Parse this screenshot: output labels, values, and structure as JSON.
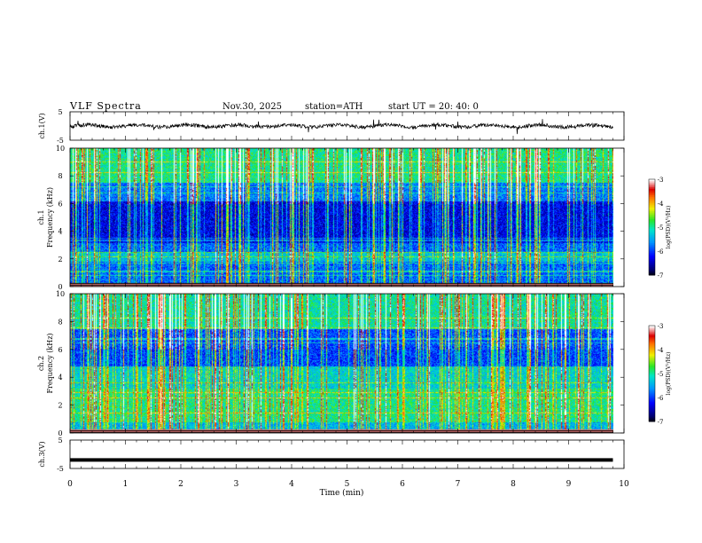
{
  "header": {
    "title": "VLF  Spectra",
    "date": "Nov.30, 2025",
    "station": "station=ATH",
    "start": "start  UT  =    20: 40: 0"
  },
  "chart_data": [
    {
      "type": "line",
      "name_label": "ch.1(V)",
      "ylim": [
        -5,
        5
      ],
      "yticks": [
        "5",
        "-5"
      ],
      "description_values": {
        "baseline": 0.0,
        "typical_range": [
          -1.0,
          1.0
        ]
      }
    },
    {
      "type": "heatmap",
      "ylabel": "ch.1\nFrequency  (kHz)",
      "ylim": [
        0,
        10
      ],
      "yticks": [
        "0",
        "2",
        "4",
        "6",
        "8",
        "10"
      ],
      "colorbar": {
        "label": "log(PSD)(V²/Hz)",
        "ticks": [
          "-3",
          "-4",
          "-5",
          "-6",
          "-7"
        ],
        "range": [
          -7,
          -3
        ]
      }
    },
    {
      "type": "heatmap",
      "ylabel": "ch.2\nFrequency  (kHz)",
      "ylim": [
        0,
        10
      ],
      "yticks": [
        "0",
        "2",
        "4",
        "6",
        "8",
        "10"
      ],
      "colorbar": {
        "label": "log(PSD)(V²/Hz)",
        "ticks": [
          "-3",
          "-4",
          "-5",
          "-6",
          "-7"
        ],
        "range": [
          -7,
          -3
        ]
      }
    },
    {
      "type": "line",
      "name_label": "ch.3(V)",
      "ylim": [
        -5,
        5
      ],
      "yticks": [
        "5",
        "-5"
      ],
      "description_values": {
        "baseline": -2.0
      }
    }
  ],
  "xaxis": {
    "label": "Time  (min)",
    "ticks": [
      "0",
      "1",
      "2",
      "3",
      "4",
      "5",
      "6",
      "7",
      "8",
      "9",
      "10"
    ],
    "xlim": [
      0,
      10
    ],
    "data_end": 9.8
  }
}
